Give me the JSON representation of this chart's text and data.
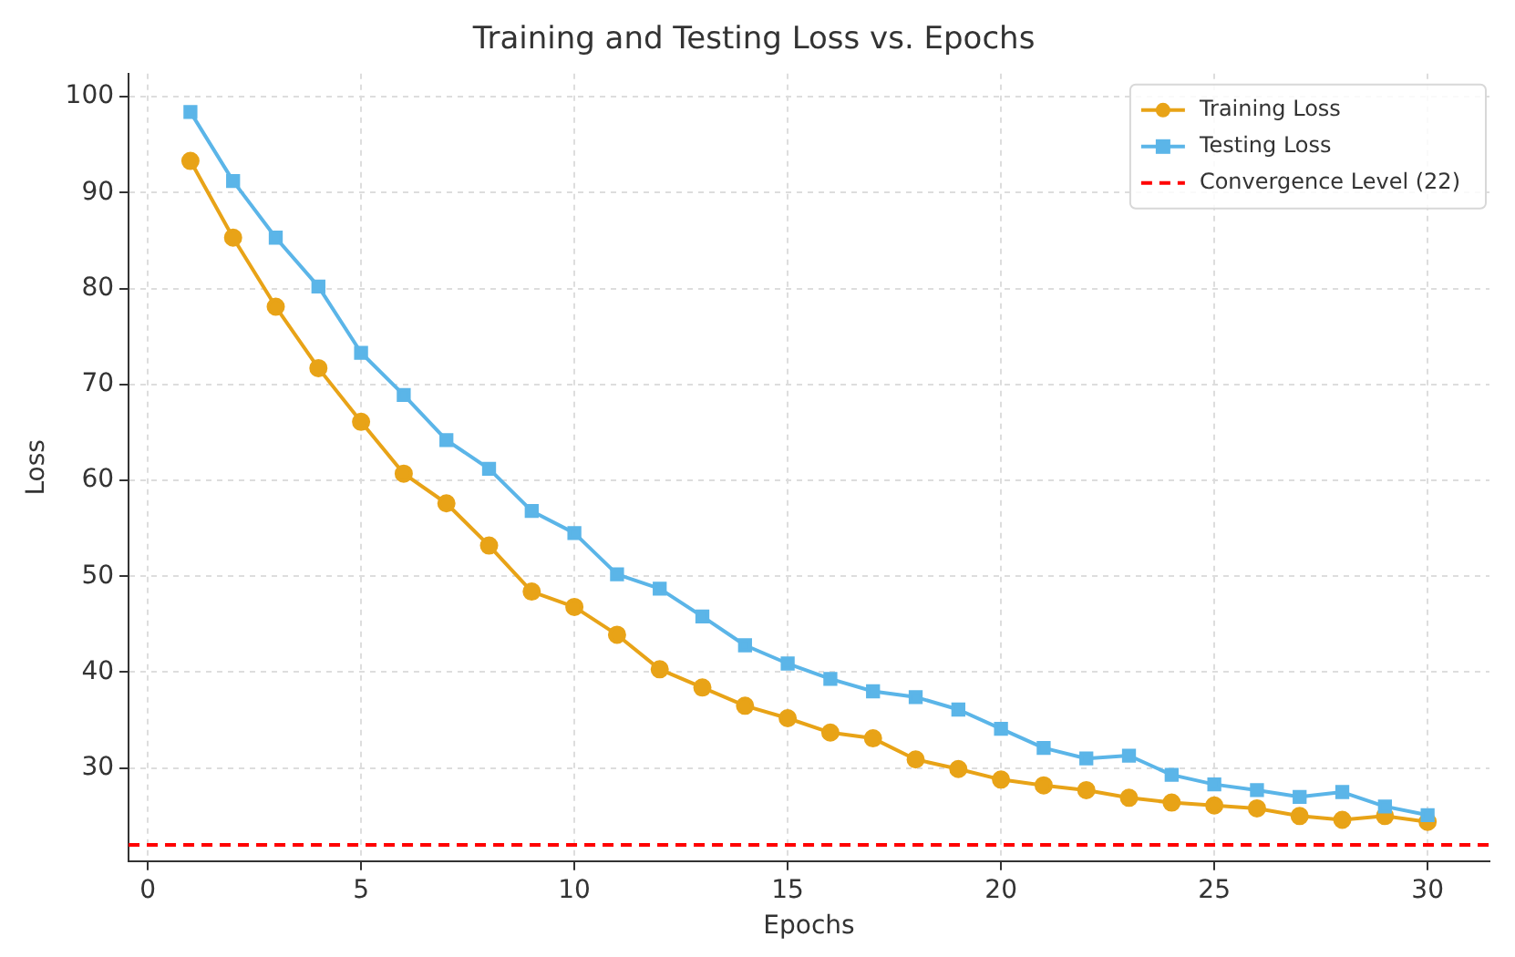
{
  "chart_data": {
    "type": "line",
    "title": "Training and Testing Loss vs. Epochs",
    "xlabel": "Epochs",
    "ylabel": "Loss",
    "x": [
      1,
      2,
      3,
      4,
      5,
      6,
      7,
      8,
      9,
      10,
      11,
      12,
      13,
      14,
      15,
      16,
      17,
      18,
      19,
      20,
      21,
      22,
      23,
      24,
      25,
      26,
      27,
      28,
      29,
      30
    ],
    "series": [
      {
        "name": "Training Loss",
        "color": "#e8a317",
        "marker": "circle",
        "values": [
          93.3,
          85.3,
          78.1,
          71.7,
          66.1,
          60.7,
          57.6,
          53.2,
          48.4,
          46.8,
          43.9,
          40.3,
          38.4,
          36.5,
          35.2,
          33.7,
          33.1,
          30.9,
          29.9,
          28.8,
          28.2,
          27.7,
          26.9,
          26.4,
          26.1,
          25.8,
          25.0,
          24.6,
          25.0,
          24.4
        ]
      },
      {
        "name": "Testing Loss",
        "color": "#5bb5e8",
        "marker": "square",
        "values": [
          98.4,
          91.2,
          85.3,
          80.2,
          73.3,
          68.9,
          64.2,
          61.2,
          56.8,
          54.5,
          50.2,
          48.7,
          45.8,
          42.8,
          40.9,
          39.3,
          38.0,
          37.4,
          36.1,
          34.1,
          32.1,
          31.0,
          31.3,
          29.3,
          28.3,
          27.7,
          27.0,
          27.5,
          26.0,
          25.1
        ]
      }
    ],
    "ref_lines": [
      {
        "axis": "y",
        "value": 22,
        "label": "Convergence Level (22)",
        "color": "#ff0000",
        "line_style": "dashed"
      }
    ],
    "xlim": [
      -0.45,
      31.45
    ],
    "xticks": [
      0,
      5,
      10,
      15,
      20,
      25,
      30
    ],
    "ylim": [
      20.3,
      102.4
    ],
    "yticks": [
      30,
      40,
      50,
      60,
      70,
      80,
      90,
      100
    ],
    "grid": true,
    "legend": "top right",
    "line_style": "solid"
  }
}
